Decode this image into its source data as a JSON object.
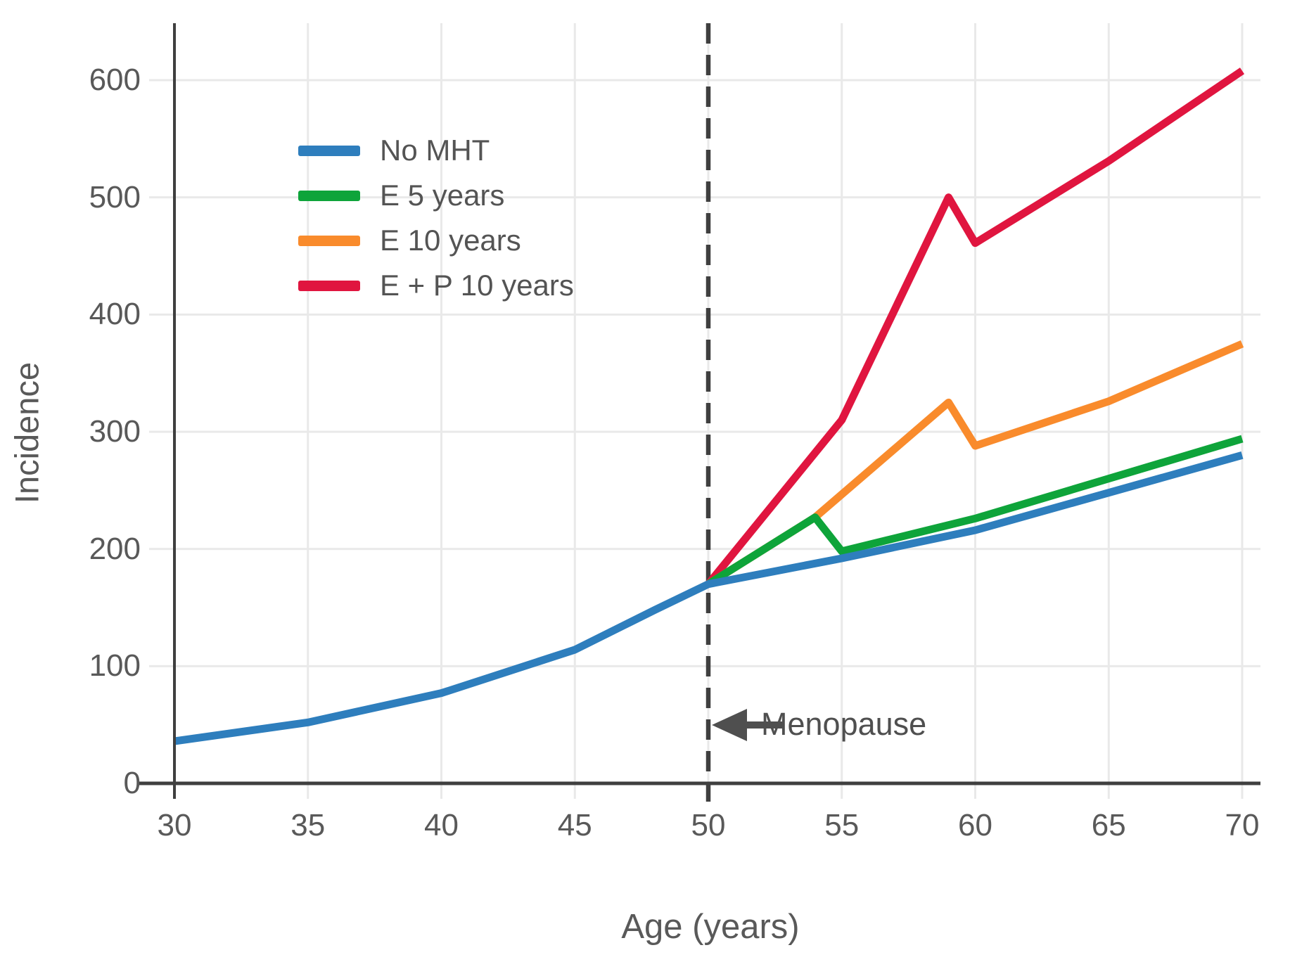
{
  "chart_data": {
    "type": "line",
    "title": "",
    "xlabel": "Age (years)",
    "ylabel": "Incidence",
    "xlim": [
      30,
      70
    ],
    "ylim": [
      0,
      650
    ],
    "x_ticks": [
      30,
      35,
      40,
      45,
      50,
      55,
      60,
      65,
      70
    ],
    "y_ticks": [
      0,
      100,
      200,
      300,
      400,
      500,
      600
    ],
    "grid": true,
    "legend_position": "upper-left-inside",
    "style": {
      "grid_color": "#e9e9e9",
      "axis_color": "#3f3f3f",
      "text_color": "#595959",
      "annotation_color": "#4f4f4f"
    },
    "reference_line": {
      "x": 50,
      "style": "dashed",
      "color": "#3f3f3f"
    },
    "annotation": {
      "label": "Menopause",
      "x": 50,
      "y": 50,
      "arrow": "left"
    },
    "series": [
      {
        "name": "No MHT",
        "color": "#2e7ebd",
        "points": [
          [
            30,
            36
          ],
          [
            35,
            52
          ],
          [
            40,
            77
          ],
          [
            45,
            114
          ],
          [
            48,
            148
          ],
          [
            50,
            170
          ],
          [
            55,
            192
          ],
          [
            60,
            216
          ],
          [
            65,
            248
          ],
          [
            70,
            280
          ]
        ]
      },
      {
        "name": "E 5 years",
        "color": "#0ea43a",
        "points": [
          [
            50,
            170
          ],
          [
            54,
            227
          ],
          [
            55,
            198
          ],
          [
            60,
            226
          ],
          [
            65,
            260
          ],
          [
            70,
            294
          ]
        ]
      },
      {
        "name": "E 10 years",
        "color": "#f98b2c",
        "points": [
          [
            50,
            170
          ],
          [
            54,
            227
          ],
          [
            59,
            325
          ],
          [
            60,
            288
          ],
          [
            65,
            326
          ],
          [
            70,
            375
          ]
        ]
      },
      {
        "name": "E + P 10 years",
        "color": "#e0153f",
        "points": [
          [
            50,
            170
          ],
          [
            55,
            310
          ],
          [
            59,
            500
          ],
          [
            60,
            461
          ],
          [
            65,
            531
          ],
          [
            70,
            608
          ]
        ]
      }
    ]
  }
}
